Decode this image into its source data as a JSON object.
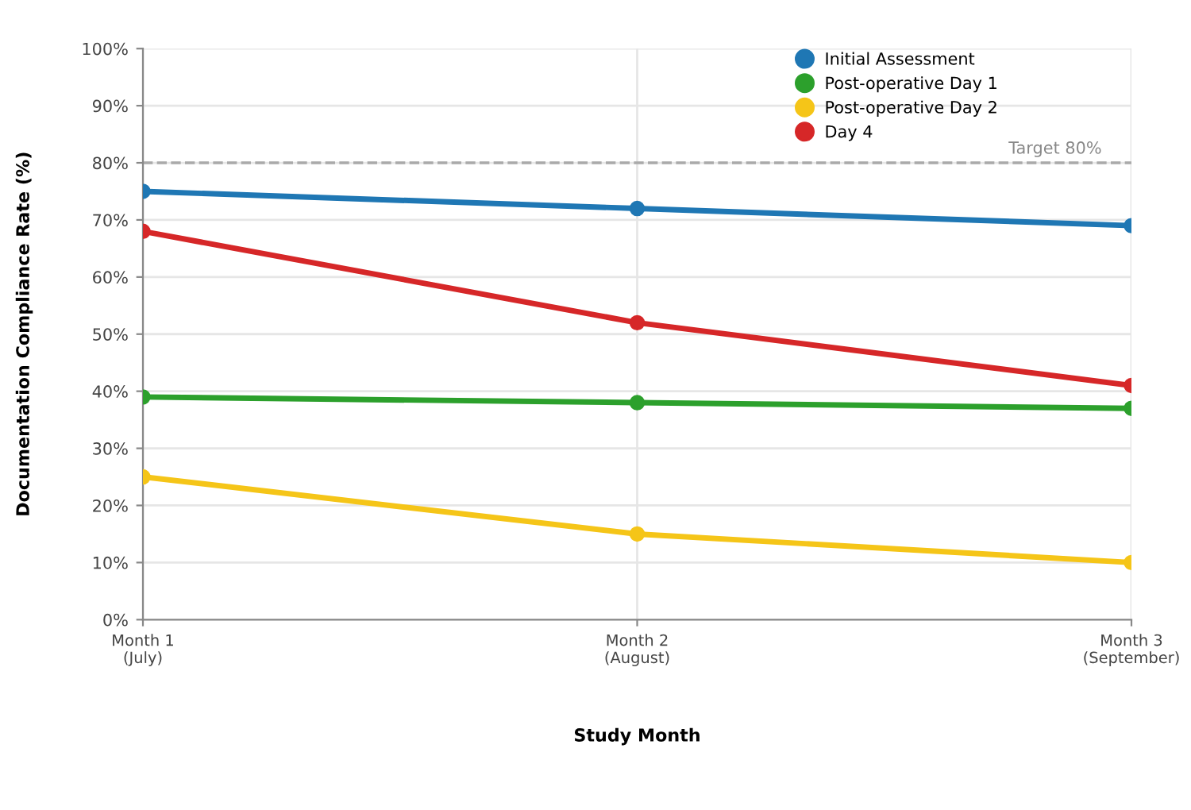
{
  "chart_data": {
    "type": "line",
    "xlabel": "Study Month",
    "ylabel": "Documentation Compliance Rate (%)",
    "categories": [
      "Month 1\n(July)",
      "Month 2\n(August)",
      "Month 3\n(September)"
    ],
    "series": [
      {
        "name": "Initial Assessment",
        "color": "#1f77b4",
        "values": [
          75,
          72,
          69
        ]
      },
      {
        "name": "Post-operative Day 1",
        "color": "#2ca02c",
        "values": [
          39,
          38,
          37
        ]
      },
      {
        "name": "Post-operative Day 2",
        "color": "#f5c518",
        "values": [
          25,
          15,
          10
        ]
      },
      {
        "name": "Day 4",
        "color": "#d62728",
        "values": [
          68,
          52,
          41
        ]
      }
    ],
    "ylim": [
      0,
      100
    ],
    "yticks": [
      {
        "value": 0,
        "label": "0%"
      },
      {
        "value": 10,
        "label": "10%"
      },
      {
        "value": 20,
        "label": "20%"
      },
      {
        "value": 30,
        "label": "30%"
      },
      {
        "value": 40,
        "label": "40%"
      },
      {
        "value": 50,
        "label": "50%"
      },
      {
        "value": 60,
        "label": "60%"
      },
      {
        "value": 70,
        "label": "70%"
      },
      {
        "value": 80,
        "label": "80%"
      },
      {
        "value": 90,
        "label": "90%"
      },
      {
        "value": 100,
        "label": "100%"
      }
    ],
    "ref_lines": [
      {
        "axis": "y",
        "value": 80,
        "label": "Target 80%",
        "color": "#aaaaaa",
        "line_style": "dashed"
      }
    ],
    "grid": true,
    "legend": "top right",
    "marker": "circle",
    "line_style": "solid"
  }
}
